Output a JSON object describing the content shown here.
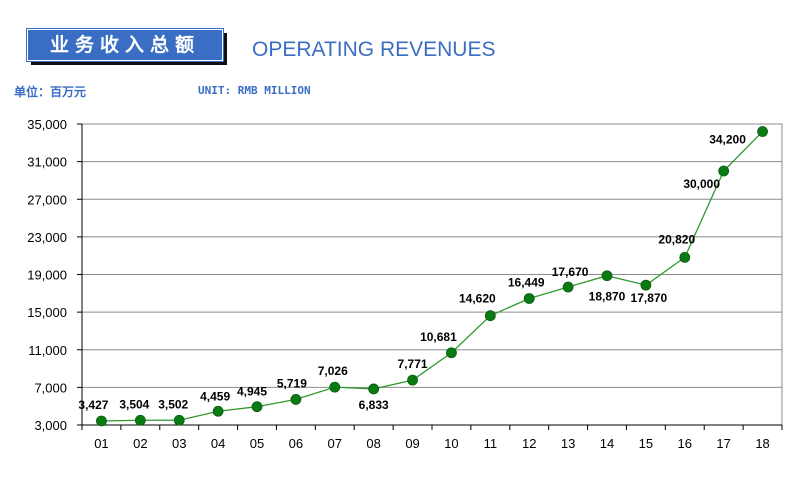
{
  "header": {
    "title_cn": "业务收入总额",
    "title_en": "OPERATING REVENUES",
    "unit_cn": "单位：百万元",
    "unit_en": "UNIT: RMB MILLION"
  },
  "colors": {
    "accent": "#3a6ec4",
    "line": "#2e9a2e",
    "marker": "#0a7a12",
    "grid": "#8c8c8c"
  },
  "chart_data": {
    "type": "line",
    "title": "OPERATING REVENUES",
    "xlabel": "",
    "ylabel": "",
    "categories": [
      "01",
      "02",
      "03",
      "04",
      "05",
      "06",
      "07",
      "08",
      "09",
      "10",
      "11",
      "12",
      "13",
      "14",
      "15",
      "16",
      "17",
      "18"
    ],
    "series": [
      {
        "values": [
          3427,
          3504,
          3502,
          4459,
          4945,
          5719,
          7026,
          6833,
          7771,
          10681,
          14620,
          16449,
          17670,
          18870,
          17870,
          20820,
          30000,
          34200
        ]
      }
    ],
    "data_labels": [
      "3,427",
      "3,504",
      "3,502",
      "4,459",
      "4,945",
      "5,719",
      "7,026",
      "6,833",
      "7,771",
      "10,681",
      "14,620",
      "16,449",
      "17,670",
      "18,870",
      "17,870",
      "20,820",
      "30,000",
      "34,200"
    ],
    "ylim": [
      3000,
      35000
    ],
    "yticks": [
      "3,000",
      "7,000",
      "11,000",
      "15,000",
      "19,000",
      "23,000",
      "27,000",
      "31,000",
      "35,000"
    ],
    "grid": true,
    "legend": "none"
  }
}
